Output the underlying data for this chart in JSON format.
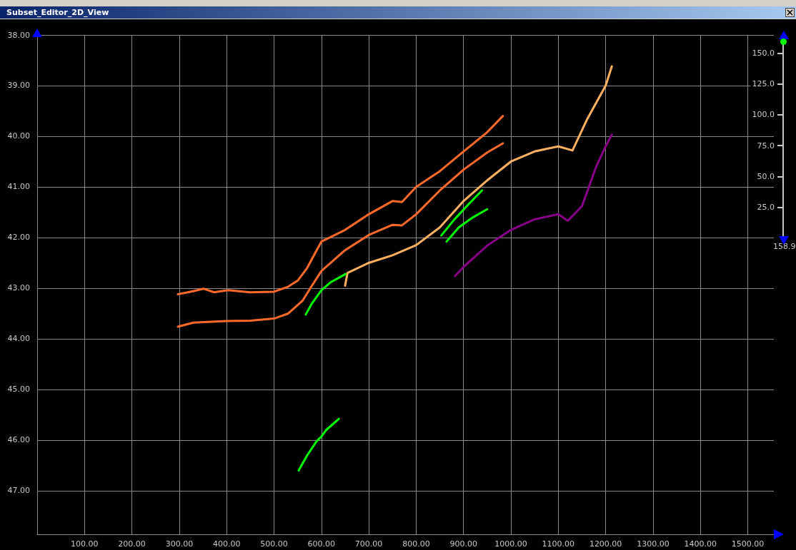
{
  "chart_data": {
    "type": "line",
    "title": "Subset_Editor_2D_View",
    "xlim": [
      0,
      1555
    ],
    "xticks": [
      {
        "value": 100,
        "label": "100.00"
      },
      {
        "value": 200,
        "label": "200.00"
      },
      {
        "value": 300,
        "label": "300.00"
      },
      {
        "value": 400,
        "label": "400.00"
      },
      {
        "value": 500,
        "label": "500.00"
      },
      {
        "value": 600,
        "label": "600.00"
      },
      {
        "value": 700,
        "label": "700.00"
      },
      {
        "value": 800,
        "label": "800.00"
      },
      {
        "value": 900,
        "label": "900.00"
      },
      {
        "value": 1000,
        "label": "1000.00"
      },
      {
        "value": 1100,
        "label": "1100.00"
      },
      {
        "value": 1200,
        "label": "1200.00"
      },
      {
        "value": 1300,
        "label": "1300.00"
      },
      {
        "value": 1400,
        "label": "1400.00"
      },
      {
        "value": 1500,
        "label": "1500.00"
      }
    ],
    "ylim": [
      47.86,
      38
    ],
    "yticks": [
      {
        "value": 38,
        "label": "38.00"
      },
      {
        "value": 39,
        "label": "39.00"
      },
      {
        "value": 40,
        "label": "40.00"
      },
      {
        "value": 41,
        "label": "41.00"
      },
      {
        "value": 42,
        "label": "42.00"
      },
      {
        "value": 43,
        "label": "43.00"
      },
      {
        "value": 44,
        "label": "44.00"
      },
      {
        "value": 45,
        "label": "45.00"
      },
      {
        "value": 46,
        "label": "46.00"
      },
      {
        "value": 47,
        "label": "47.00"
      }
    ],
    "y2lim": [
      0,
      160
    ],
    "y2ticks": [
      {
        "value": 25,
        "label": "25.0"
      },
      {
        "value": 50,
        "label": "50.0"
      },
      {
        "value": 75,
        "label": "75.0"
      },
      {
        "value": 100,
        "label": "100.0"
      },
      {
        "value": 125,
        "label": "125.0"
      },
      {
        "value": 150,
        "label": "150.0"
      }
    ],
    "annotations": [
      "158.9"
    ],
    "grid": true,
    "line_style": "solid",
    "marker": "none",
    "series": [
      {
        "color": "#ff6a2a",
        "x": [
          297,
          329,
          351,
          373,
          403,
          449,
          500,
          530,
          550,
          570,
          590,
          600,
          650,
          700,
          750,
          770,
          800,
          850,
          900,
          950,
          983
        ],
        "values": [
          43.12,
          43.06,
          43.01,
          43.08,
          43.04,
          43.08,
          43.07,
          42.97,
          42.85,
          42.6,
          42.25,
          42.08,
          41.85,
          41.54,
          41.28,
          41.3,
          41.0,
          40.69,
          40.3,
          39.92,
          39.6
        ]
      },
      {
        "color": "#ff6a2a",
        "x": [
          297,
          330,
          400,
          450,
          500,
          530,
          560,
          580,
          600,
          650,
          700,
          750,
          770,
          800,
          850,
          900,
          950,
          983
        ],
        "values": [
          43.76,
          43.68,
          43.65,
          43.64,
          43.6,
          43.5,
          43.25,
          42.95,
          42.66,
          42.25,
          41.95,
          41.75,
          41.76,
          41.54,
          41.07,
          40.66,
          40.32,
          40.14
        ]
      },
      {
        "color": "#ffb060",
        "x": [
          650,
          655,
          700,
          750,
          800,
          850,
          900,
          950,
          1000,
          1050,
          1100,
          1130,
          1160,
          1200,
          1213
        ],
        "values": [
          42.95,
          42.7,
          42.5,
          42.35,
          42.15,
          41.8,
          41.28,
          40.87,
          40.5,
          40.3,
          40.2,
          40.28,
          39.68,
          39.0,
          38.62
        ]
      },
      {
        "color": "#880088",
        "x": [
          882,
          900,
          950,
          1000,
          1050,
          1100,
          1120,
          1150,
          1180,
          1200,
          1213
        ],
        "values": [
          42.76,
          42.58,
          42.16,
          41.85,
          41.64,
          41.54,
          41.67,
          41.38,
          40.6,
          40.2,
          39.97
        ]
      },
      {
        "color": "#00ff00",
        "x": [
          552,
          570,
          590,
          600,
          610,
          637
        ],
        "values": [
          46.6,
          46.3,
          46.02,
          45.93,
          45.8,
          45.58
        ]
      },
      {
        "color": "#00ff00",
        "x": [
          567,
          580,
          600,
          620,
          651
        ],
        "values": [
          43.52,
          43.3,
          43.04,
          42.88,
          42.72
        ]
      },
      {
        "color": "#00ff00",
        "x": [
          853,
          880,
          910,
          939
        ],
        "values": [
          41.96,
          41.65,
          41.35,
          41.07
        ]
      },
      {
        "color": "#00ff00",
        "x": [
          864,
          890,
          920,
          950
        ],
        "values": [
          42.08,
          41.8,
          41.6,
          41.44
        ]
      }
    ]
  }
}
